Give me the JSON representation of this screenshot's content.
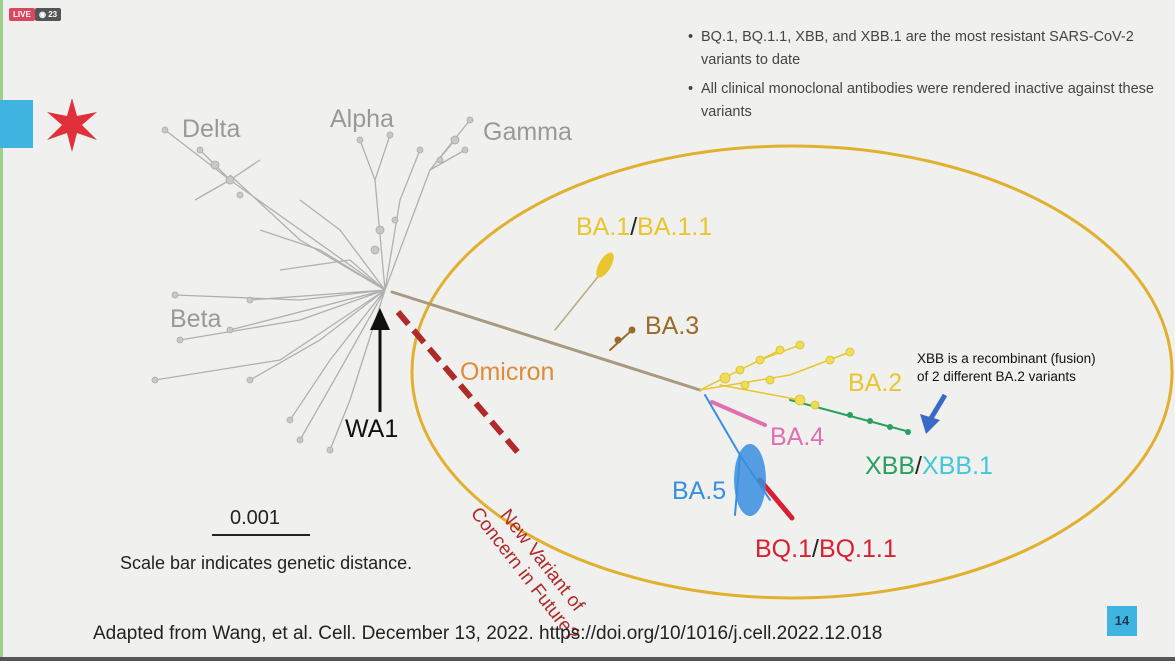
{
  "stream": {
    "live_label": "LIVE",
    "viewer_icon": "eye-icon",
    "viewer_count": "23"
  },
  "bullets": [
    "BQ.1, BQ.1.1, XBB, and XBB.1 are the most resistant SARS-CoV-2 variants to date",
    "All clinical monoclonal antibodies were rendered inactive against these variants"
  ],
  "tree": {
    "early_labels": {
      "delta": "Delta",
      "alpha": "Alpha",
      "gamma": "Gamma",
      "beta": "Beta"
    },
    "omicron": "Omicron",
    "ba1": "BA.1",
    "slash": "/",
    "ba11": "BA.1.1",
    "ba3": "BA.3",
    "ba2": "BA.2",
    "ba4": "BA.4",
    "ba5": "BA.5",
    "xbb": "XBB",
    "xbb1": "XBB.1",
    "bq1": "BQ.1",
    "bq11": "BQ.1.1",
    "wa1": "WA1",
    "xbb_note_line1": "XBB is a recombinant (fusion)",
    "xbb_note_line2": "of 2 different BA.2 variants",
    "future_line1": "New Variant of",
    "future_line2": "Concern in Future?",
    "scale_value": "0.001",
    "scale_caption": "Scale bar indicates genetic distance."
  },
  "colors": {
    "gray": "#9a9a9a",
    "yellow": "#e8c630",
    "brown": "#9a6a2a",
    "orange": "#e08a3a",
    "pink": "#e070b0",
    "blue": "#3a8ee0",
    "red": "#d82030",
    "green": "#2aa060",
    "cyan": "#40c8d8",
    "ellipse": "#e0b030",
    "dashed": "#b02a2a"
  },
  "citation": "Adapted from Wang, et al. Cell. December 13, 2022. https://doi.org/10/1016/j.cell.2022.12.018",
  "page_number": "14"
}
